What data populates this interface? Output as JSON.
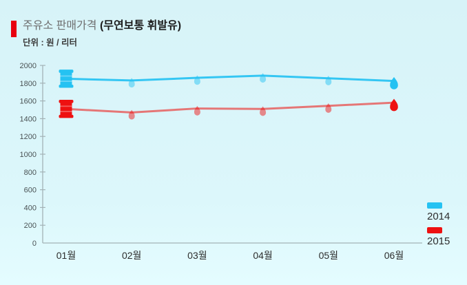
{
  "header": {
    "accent_color": "#e8000f",
    "title": "주유소 판매가격",
    "title_emphasis": "(무연보통 휘발유)",
    "unit_label": "단위 : 원 / 리터"
  },
  "chart_data": {
    "type": "line",
    "title": "주유소 판매가격 (무연보통 휘발유)",
    "unit": "원 / 리터",
    "categories": [
      "01월",
      "02월",
      "03월",
      "04월",
      "05월",
      "06월"
    ],
    "series": [
      {
        "name": "2014",
        "color": "#25c2f2",
        "line_color": "#34c6f3",
        "values": [
          1850,
          1830,
          1860,
          1885,
          1855,
          1825
        ]
      },
      {
        "name": "2015",
        "color": "#ee1111",
        "line_color": "#e57676",
        "values": [
          1510,
          1470,
          1515,
          1510,
          1545,
          1580
        ]
      }
    ],
    "ylim": [
      0,
      2000
    ],
    "y_tick_step": 200,
    "y_tick_labels": [
      "0",
      "200",
      "400",
      "600",
      "800",
      "1000",
      "1200",
      "1400",
      "1600",
      "1800",
      "2000"
    ],
    "grid": false,
    "legend_position": "right-bottom",
    "marker_styles": {
      "first": "oil-drum",
      "middle": "droplet-faded",
      "last": "droplet-solid"
    }
  }
}
